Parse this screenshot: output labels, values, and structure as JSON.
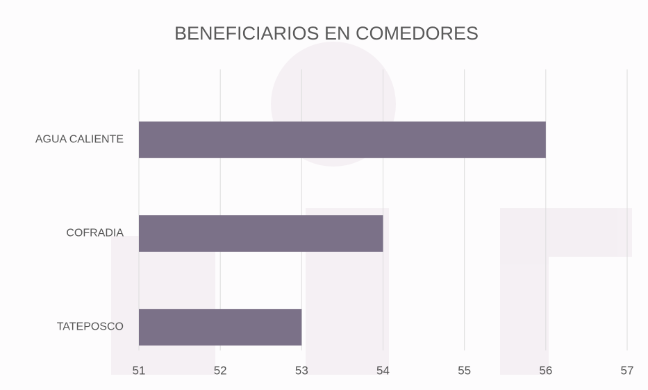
{
  "chart_data": {
    "type": "bar",
    "title": "BENEFICIARIOS EN COMEDORES",
    "categories": [
      "AGUA CALIENTE",
      "COFRADIA",
      "TATEPOSCO"
    ],
    "values": [
      56,
      54,
      53
    ],
    "color": "#7b7188",
    "xlim": [
      51,
      57
    ],
    "xticks": [
      51,
      52,
      53,
      54,
      55,
      56,
      57
    ],
    "grid": true
  }
}
